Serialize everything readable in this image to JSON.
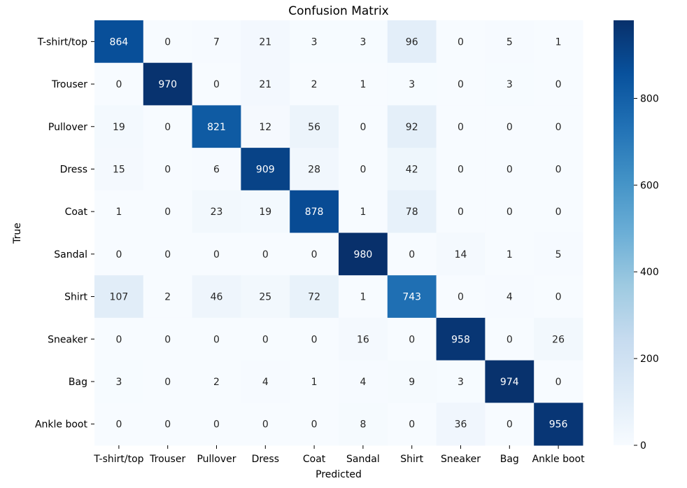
{
  "chart_data": {
    "type": "heatmap",
    "title": "Confusion Matrix",
    "xlabel": "Predicted",
    "ylabel": "True",
    "colormap": "Blues",
    "x_labels": [
      "T-shirt/top",
      "Trouser",
      "Pullover",
      "Dress",
      "Coat",
      "Sandal",
      "Shirt",
      "Sneaker",
      "Bag",
      "Ankle boot"
    ],
    "y_labels": [
      "T-shirt/top",
      "Trouser",
      "Pullover",
      "Dress",
      "Coat",
      "Sandal",
      "Shirt",
      "Sneaker",
      "Bag",
      "Ankle boot"
    ],
    "matrix": [
      [
        864,
        0,
        7,
        21,
        3,
        3,
        96,
        0,
        5,
        1
      ],
      [
        0,
        970,
        0,
        21,
        2,
        1,
        3,
        0,
        3,
        0
      ],
      [
        19,
        0,
        821,
        12,
        56,
        0,
        92,
        0,
        0,
        0
      ],
      [
        15,
        0,
        6,
        909,
        28,
        0,
        42,
        0,
        0,
        0
      ],
      [
        1,
        0,
        23,
        19,
        878,
        1,
        78,
        0,
        0,
        0
      ],
      [
        0,
        0,
        0,
        0,
        0,
        980,
        0,
        14,
        1,
        5
      ],
      [
        107,
        2,
        46,
        25,
        72,
        1,
        743,
        0,
        4,
        0
      ],
      [
        0,
        0,
        0,
        0,
        0,
        16,
        0,
        958,
        0,
        26
      ],
      [
        3,
        0,
        2,
        4,
        1,
        4,
        9,
        3,
        974,
        0
      ],
      [
        0,
        0,
        0,
        0,
        0,
        8,
        0,
        36,
        0,
        956
      ]
    ],
    "vmin": 0,
    "vmax": 980,
    "colorbar_ticks": [
      "0",
      "200",
      "400",
      "600",
      "800"
    ]
  }
}
